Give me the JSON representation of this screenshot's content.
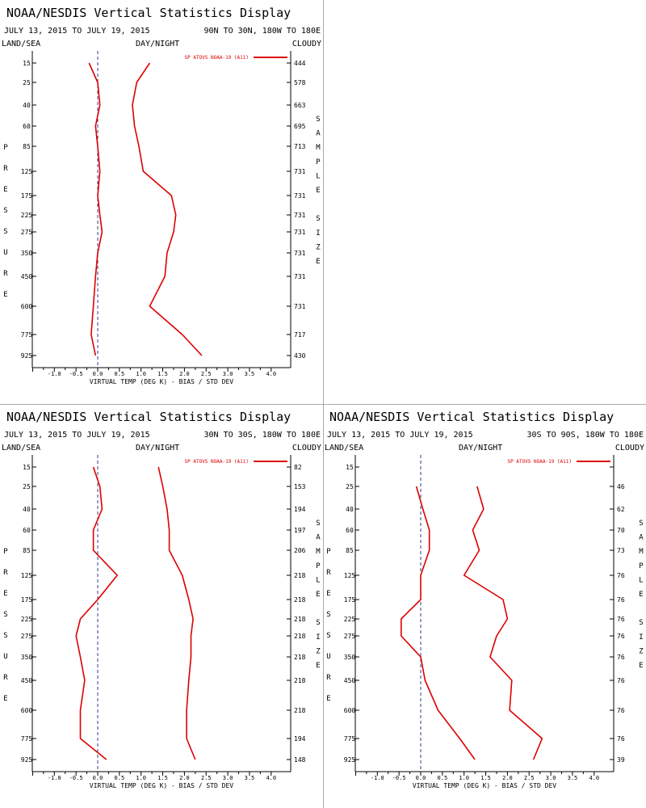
{
  "chart_data": [
    {
      "type": "line",
      "title": "NOAA/NESDIS Vertical Statistics Display",
      "date_range": "JULY 13, 2015 TO JULY 19, 2015",
      "region": "90N TO 30N, 180W TO 180E",
      "filters": [
        "LAND/SEA",
        "DAY/NIGHT",
        "CLOUDY"
      ],
      "legend": "SP ATOVS NOAA-19 (A11)",
      "xlabel": "VIRTUAL TEMP (DEG K) - BIAS / STD DEV",
      "ylabel": "PRESSURE",
      "y2label": "SAMPLE SIZE",
      "xlim": [
        -1.5,
        4.0
      ],
      "xticks": [
        "-1.0",
        "-0.5",
        "0.0",
        "0.5",
        "1.0",
        "1.5",
        "2.0",
        "2.5",
        "3.0",
        "3.5",
        "4.0"
      ],
      "pressure_levels": [
        15,
        25,
        40,
        60,
        85,
        125,
        175,
        225,
        275,
        350,
        450,
        600,
        775,
        925
      ],
      "sample_size": [
        "444",
        "578",
        "663",
        "695",
        "713",
        "731",
        "731",
        "731",
        "731",
        "731",
        "731",
        "731",
        "717",
        "430"
      ],
      "series": [
        {
          "name": "BIAS",
          "values": [
            -0.2,
            0.0,
            0.05,
            -0.05,
            0.0,
            0.05,
            0.0,
            0.05,
            0.1,
            0.0,
            -0.05,
            -0.1,
            -0.15,
            -0.05
          ],
          "color": "#dd0000"
        },
        {
          "name": "STD DEV",
          "values": [
            1.2,
            0.9,
            0.8,
            0.85,
            0.95,
            1.05,
            1.7,
            1.8,
            1.75,
            1.6,
            1.55,
            1.2,
            1.95,
            2.4
          ],
          "color": "#dd0000"
        }
      ]
    },
    {
      "type": "line",
      "title": "NOAA/NESDIS Vertical Statistics Display",
      "date_range": "JULY 13, 2015 TO JULY 19, 2015",
      "region": "30N TO 30S, 180W TO 180E",
      "filters": [
        "LAND/SEA",
        "DAY/NIGHT",
        "CLOUDY"
      ],
      "legend": "SP ATOVS NOAA-19 (A11)",
      "xlabel": "VIRTUAL TEMP (DEG K) - BIAS / STD DEV",
      "ylabel": "PRESSURE",
      "y2label": "SAMPLE SIZE",
      "xlim": [
        -1.5,
        4.0
      ],
      "xticks": [
        "-1.0",
        "-0.5",
        "0.0",
        "0.5",
        "1.0",
        "1.5",
        "2.0",
        "2.5",
        "3.0",
        "3.5",
        "4.0"
      ],
      "pressure_levels": [
        15,
        25,
        40,
        60,
        85,
        125,
        175,
        225,
        275,
        350,
        450,
        600,
        775,
        925
      ],
      "sample_size": [
        "82",
        "153",
        "194",
        "197",
        "206",
        "218",
        "218",
        "218",
        "218",
        "218",
        "218",
        "218",
        "194",
        "148"
      ],
      "series": [
        {
          "name": "BIAS",
          "values": [
            -0.1,
            0.05,
            0.1,
            -0.1,
            -0.1,
            0.45,
            0.0,
            -0.4,
            -0.5,
            -0.4,
            -0.3,
            -0.4,
            -0.4,
            0.2
          ],
          "color": "#dd0000"
        },
        {
          "name": "STD DEV",
          "values": [
            1.4,
            1.5,
            1.6,
            1.65,
            1.65,
            1.95,
            2.1,
            2.2,
            2.15,
            2.15,
            2.1,
            2.05,
            2.05,
            2.25
          ],
          "color": "#dd0000"
        }
      ]
    },
    {
      "type": "line",
      "title": "NOAA/NESDIS Vertical Statistics Display",
      "date_range": "JULY 13, 2015 TO JULY 19, 2015",
      "region": "30S TO 90S, 180W TO 180E",
      "filters": [
        "LAND/SEA",
        "DAY/NIGHT",
        "CLOUDY"
      ],
      "legend": "SP ATOVS NOAA-19 (A11)",
      "xlabel": "VIRTUAL TEMP (DEG K) - BIAS / STD DEV",
      "ylabel": "PRESSURE",
      "y2label": "SAMPLE SIZE",
      "xlim": [
        -1.5,
        4.0
      ],
      "xticks": [
        "-1.0",
        "-0.5",
        "0.0",
        "0.5",
        "1.0",
        "1.5",
        "2.0",
        "2.5",
        "3.0",
        "3.5",
        "4.0"
      ],
      "pressure_levels": [
        15,
        25,
        40,
        60,
        85,
        125,
        175,
        225,
        275,
        350,
        450,
        600,
        775,
        925
      ],
      "sample_size": [
        "",
        "46",
        "62",
        "70",
        "73",
        "76",
        "76",
        "76",
        "76",
        "76",
        "76",
        "76",
        "76",
        "39"
      ],
      "series": [
        {
          "name": "BIAS",
          "values": [
            null,
            -0.1,
            0.05,
            0.2,
            0.2,
            0.0,
            0.0,
            -0.45,
            -0.45,
            0.0,
            0.1,
            0.4,
            0.9,
            1.25
          ],
          "color": "#dd0000"
        },
        {
          "name": "STD DEV",
          "values": [
            null,
            1.3,
            1.45,
            1.2,
            1.35,
            1.0,
            1.9,
            2.0,
            1.75,
            1.6,
            2.1,
            2.05,
            2.8,
            2.6
          ],
          "color": "#dd0000"
        }
      ]
    }
  ]
}
